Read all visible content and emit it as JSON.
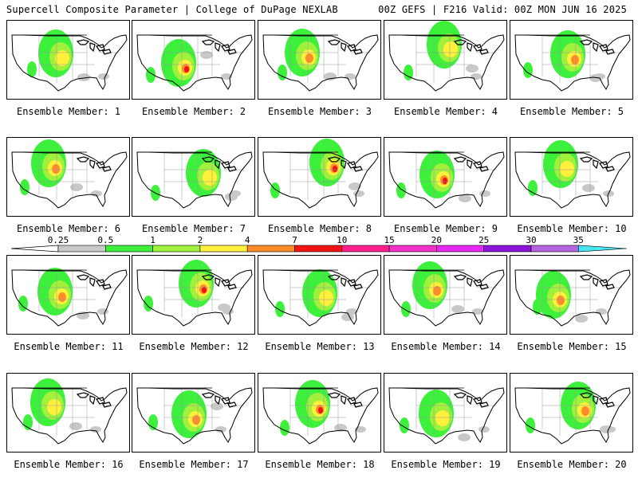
{
  "header": {
    "left": "Supercell Composite Parameter | College of DuPage NEXLAB",
    "right": "00Z GEFS | F216 Valid: 00Z MON JUN 16 2025"
  },
  "members": [
    "Ensemble Member: 1",
    "Ensemble Member: 2",
    "Ensemble Member: 3",
    "Ensemble Member: 4",
    "Ensemble Member: 5",
    "Ensemble Member: 6",
    "Ensemble Member: 7",
    "Ensemble Member: 8",
    "Ensemble Member: 9",
    "Ensemble Member: 10",
    "Ensemble Member: 11",
    "Ensemble Member: 12",
    "Ensemble Member: 13",
    "Ensemble Member: 14",
    "Ensemble Member: 15",
    "Ensemble Member: 16",
    "Ensemble Member: 17",
    "Ensemble Member: 18",
    "Ensemble Member: 19",
    "Ensemble Member: 20"
  ],
  "colorbar": {
    "ticks": [
      "0.25",
      "0.5",
      "1",
      "2",
      "4",
      "7",
      "10",
      "15",
      "20",
      "25",
      "30",
      "35"
    ],
    "colors": [
      "#c8c8c8",
      "#3cf03c",
      "#a0f03c",
      "#fff03c",
      "#ff8c28",
      "#f01414",
      "#ff1e8c",
      "#f032c8",
      "#e628f0",
      "#8c14dc",
      "#b464dc",
      "#46e6f0"
    ]
  },
  "colors": {
    "gray": "#c8c8c8",
    "green": "#3cf03c",
    "lime": "#a0f03c",
    "yellow": "#fff03c",
    "orange": "#ff8c28",
    "red": "#f01414"
  }
}
